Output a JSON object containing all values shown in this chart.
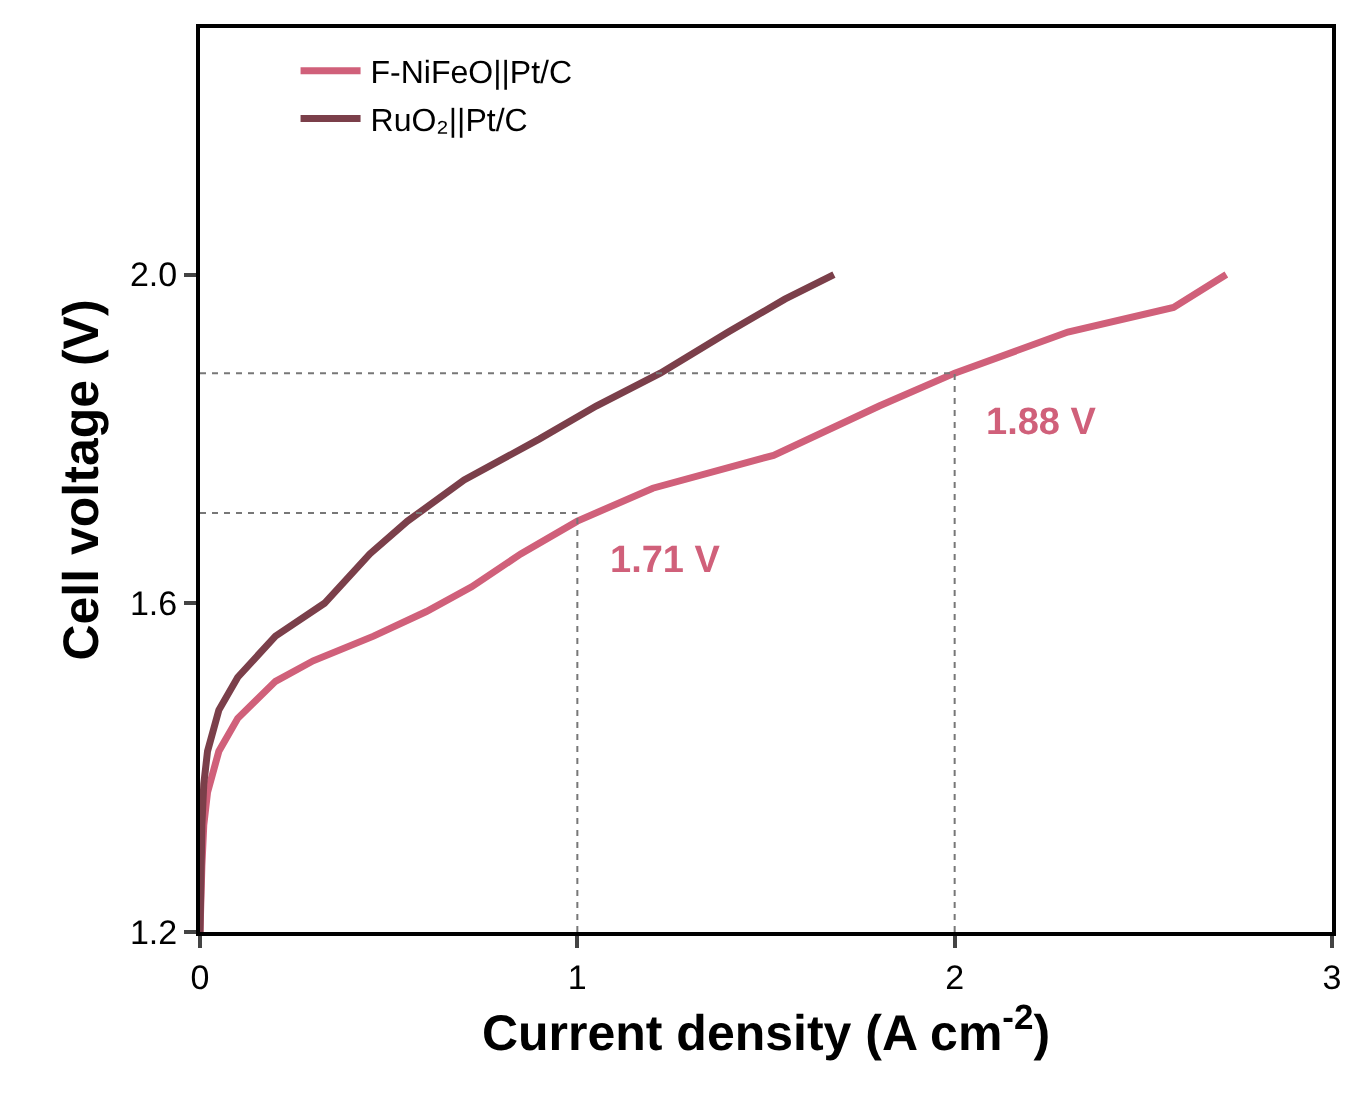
{
  "chart_data": {
    "type": "line",
    "xlabel": "Current density (A cm$^{-2}$)",
    "ylabel": "Cell voltage (V)",
    "xlim": [
      0,
      3
    ],
    "xticks": [
      0,
      1,
      2,
      3
    ],
    "ylim": [
      1.2,
      2.3
    ],
    "yticks": [
      1.2,
      1.6,
      {
        "value": 2.0,
        "label": "2.0"
      }
    ],
    "legend": "top left",
    "line_style": "solid",
    "series": [
      {
        "name": "F-NiFeO||Pt/C",
        "color": "#d0607a",
        "x": [
          0,
          0.005,
          0.01,
          0.02,
          0.05,
          0.1,
          0.2,
          0.3,
          0.46,
          0.6,
          0.72,
          0.85,
          1.0,
          1.2,
          1.52,
          1.8,
          2.0,
          2.3,
          2.58,
          2.72
        ],
        "values": [
          1.2,
          1.28,
          1.33,
          1.37,
          1.42,
          1.46,
          1.505,
          1.53,
          1.56,
          1.59,
          1.62,
          1.66,
          1.7,
          1.74,
          1.78,
          1.84,
          1.88,
          1.93,
          1.96,
          2.0
        ]
      },
      {
        "name": "RuO₂||Pt/C",
        "color": "#7b3f4a",
        "x": [
          0,
          0.005,
          0.01,
          0.02,
          0.05,
          0.1,
          0.2,
          0.33,
          0.45,
          0.55,
          0.7,
          0.9,
          1.05,
          1.22,
          1.4,
          1.55,
          1.68
        ],
        "values": [
          1.2,
          1.33,
          1.38,
          1.42,
          1.47,
          1.51,
          1.56,
          1.6,
          1.66,
          1.7,
          1.75,
          1.8,
          1.84,
          1.88,
          1.93,
          1.97,
          2.0
        ]
      }
    ],
    "annotations": [
      {
        "text": "1.71 V",
        "x": 1,
        "y": 1.71
      },
      {
        "text": "1.88 V",
        "x": 2,
        "y": 1.88
      }
    ]
  }
}
